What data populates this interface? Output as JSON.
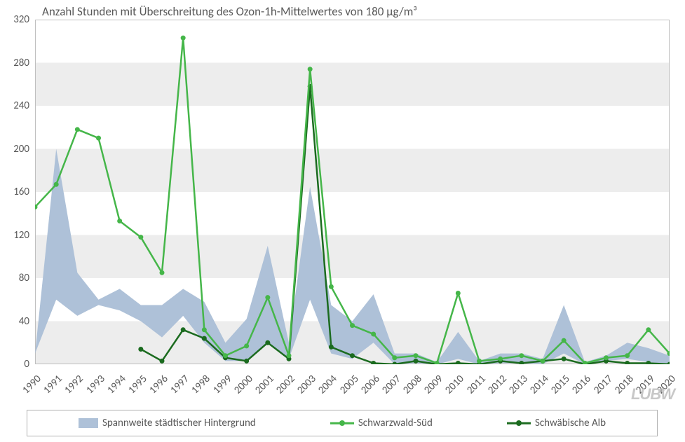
{
  "chart": {
    "type": "combined-area-line",
    "title": "Anzahl Stunden mit Überschreitung des Ozon-1h-Mittelwertes von 180 µg/m³",
    "title_fontsize": 17,
    "title_color": "#595959",
    "background_color": "#ffffff",
    "plot_background_stripes": true,
    "stripe_color": "#ededed",
    "stripe_alt_color": "#ffffff",
    "border_color": "#bfbfbf",
    "label_fontsize": 15,
    "label_color": "#595959",
    "years": [
      1990,
      1991,
      1992,
      1993,
      1994,
      1995,
      1996,
      1997,
      1998,
      1999,
      2000,
      2001,
      2002,
      2003,
      2004,
      2005,
      2006,
      2007,
      2008,
      2009,
      2010,
      2011,
      2012,
      2013,
      2014,
      2015,
      2016,
      2017,
      2018,
      2019,
      2020
    ],
    "ylim": [
      0,
      320
    ],
    "ytick_step": 40,
    "yticks": [
      0,
      40,
      80,
      120,
      160,
      200,
      240,
      280,
      320
    ],
    "x_tick_rotation_deg": -45,
    "series": {
      "spannweite": {
        "label": "Spannweite städtischer Hintergrund",
        "type": "area",
        "color": "#aec1d8",
        "opacity": 1.0,
        "low": [
          10,
          60,
          45,
          55,
          50,
          40,
          25,
          45,
          20,
          3,
          3,
          20,
          5,
          60,
          10,
          5,
          20,
          0,
          1,
          0,
          5,
          0,
          1,
          1,
          0,
          10,
          0,
          3,
          5,
          2,
          0
        ],
        "high": [
          10,
          200,
          85,
          60,
          70,
          55,
          55,
          70,
          58,
          20,
          42,
          110,
          20,
          165,
          55,
          40,
          65,
          10,
          10,
          2,
          30,
          3,
          10,
          10,
          5,
          55,
          2,
          8,
          20,
          15,
          8
        ]
      },
      "schwarzwald_sued": {
        "label": "Schwarzwald-Süd",
        "type": "line",
        "color": "#45b649",
        "marker_color": "#45b649",
        "line_width": 2.5,
        "marker_size": 7,
        "values": [
          146,
          167,
          218,
          210,
          133,
          118,
          85,
          303,
          32,
          8,
          17,
          62,
          8,
          274,
          72,
          36,
          28,
          6,
          8,
          1,
          66,
          3,
          5,
          8,
          3,
          22,
          1,
          6,
          8,
          32,
          10
        ]
      },
      "schwaebische_alb": {
        "label": "Schwäbische Alb",
        "type": "line",
        "color": "#1b6b1f",
        "marker_color": "#1b6b1f",
        "line_width": 2.5,
        "marker_size": 7,
        "values": [
          null,
          null,
          null,
          null,
          null,
          14,
          3,
          32,
          24,
          6,
          3,
          20,
          5,
          258,
          16,
          8,
          1,
          0,
          3,
          0,
          1,
          0,
          3,
          1,
          3,
          5,
          0,
          3,
          1,
          1,
          0
        ]
      }
    },
    "legend": {
      "border_color": "#b0b0b0",
      "items": [
        {
          "key": "spannweite",
          "label": "Spannweite städtischer Hintergrund"
        },
        {
          "key": "schwarzwald_sued",
          "label": "Schwarzwald-Süd"
        },
        {
          "key": "schwaebische_alb",
          "label": "Schwäbische Alb"
        }
      ]
    },
    "watermark": "LUBW"
  }
}
